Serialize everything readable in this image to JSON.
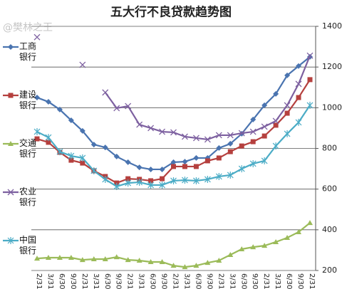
{
  "chart_data": {
    "type": "line",
    "title": "五大行不良贷款趋势图",
    "watermark": "@樊林之王",
    "categories": [
      "2/31",
      "3/31",
      "6/30",
      "9/30",
      "2/31",
      "3/31",
      "6/30",
      "9/30",
      "2/31",
      "3/31",
      "6/30",
      "9/30",
      "2/31",
      "3/31",
      "6/30",
      "9/30",
      "2/31",
      "3/31",
      "6/30",
      "9/30",
      "2/31",
      "3/31",
      "6/30",
      "9/30",
      "2/31"
    ],
    "ylim": [
      200,
      1400
    ],
    "yticks": [
      200,
      400,
      600,
      800,
      1000,
      1200,
      1400
    ],
    "grid": true,
    "axis_side": "right",
    "legend": "left",
    "series": [
      {
        "name": "工商银行",
        "color": "#4a74b0",
        "marker": "diamond",
        "values": [
          1050,
          1029,
          991,
          938,
          886,
          819,
          805,
          760,
          732,
          707,
          697,
          697,
          732,
          735,
          753,
          753,
          802,
          823,
          872,
          942,
          1012,
          1068,
          1159,
          1205,
          1250
        ]
      },
      {
        "name": "建设银行",
        "color": "#b5403e",
        "marker": "square",
        "values": [
          847,
          830,
          781,
          742,
          728,
          690,
          662,
          630,
          651,
          648,
          641,
          651,
          711,
          711,
          711,
          739,
          753,
          784,
          812,
          833,
          861,
          914,
          973,
          1050,
          1138
        ]
      },
      {
        "name": "交通银行",
        "color": "#9bbb59",
        "marker": "triangle",
        "values": [
          259,
          263,
          263,
          263,
          252,
          256,
          256,
          266,
          252,
          249,
          242,
          242,
          224,
          217,
          224,
          238,
          249,
          277,
          305,
          315,
          322,
          340,
          361,
          389,
          434
        ]
      },
      {
        "name": "农业银行",
        "color": "#7d60a0",
        "marker": "x",
        "values": [
          1347,
          null,
          null,
          null,
          1211,
          null,
          1075,
          998,
          1008,
          917,
          900,
          882,
          879,
          858,
          851,
          844,
          865,
          865,
          875,
          882,
          907,
          935,
          1012,
          1117,
          1256
        ]
      },
      {
        "name": "中国银行",
        "color": "#4bacc6",
        "marker": "star",
        "values": [
          882,
          854,
          784,
          763,
          753,
          690,
          648,
          613,
          630,
          634,
          620,
          620,
          641,
          644,
          641,
          648,
          662,
          669,
          700,
          725,
          739,
          812,
          872,
          928,
          1012
        ]
      }
    ]
  }
}
